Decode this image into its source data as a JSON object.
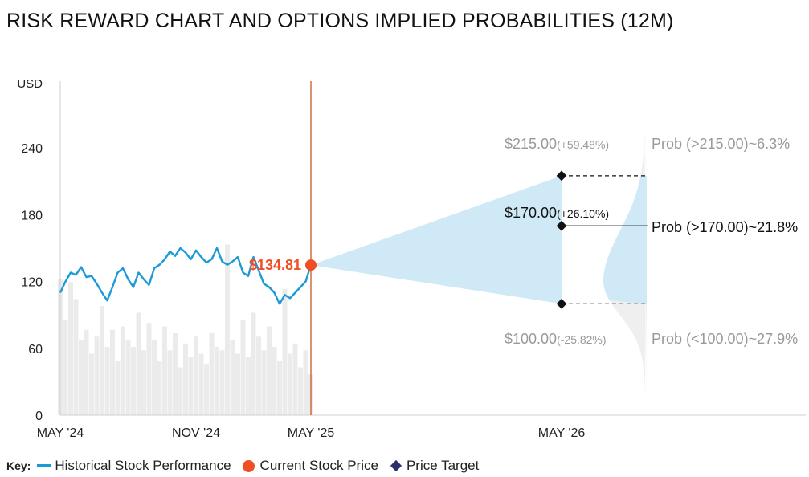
{
  "title": "RISK REWARD CHART AND OPTIONS IMPLIED PROBABILITIES (12M)",
  "colors": {
    "history_line": "#1a9ad6",
    "volume_bars": "#ebebeb",
    "current_marker": "#f04e23",
    "divider": "#c8461a",
    "cone": "#cfeaf6",
    "distribution": "#efefef",
    "target_marker": "#111111",
    "muted_text": "#999999"
  },
  "chart_data": {
    "type": "line",
    "ylabel": "USD",
    "ylim": [
      0,
      300
    ],
    "yticks": [
      "0",
      "60",
      "120",
      "180",
      "240"
    ],
    "xtick_labels": [
      "MAY '24",
      "NOV '24",
      "MAY '25",
      "MAY '26"
    ],
    "history_series": {
      "name": "Historical Stock Performance",
      "x_months": [
        0,
        0.25,
        0.5,
        0.75,
        1,
        1.25,
        1.5,
        1.75,
        2,
        2.25,
        2.5,
        2.75,
        3,
        3.25,
        3.5,
        3.75,
        4,
        4.25,
        4.5,
        4.75,
        5,
        5.25,
        5.5,
        5.75,
        6,
        6.25,
        6.5,
        6.75,
        7,
        7.25,
        7.5,
        7.75,
        8,
        8.25,
        8.5,
        8.75,
        9,
        9.25,
        9.5,
        9.75,
        10,
        10.25,
        10.5,
        10.75,
        11,
        11.25,
        11.5,
        11.75,
        12
      ],
      "values": [
        110,
        120,
        128,
        126,
        133,
        124,
        125,
        118,
        110,
        103,
        115,
        128,
        132,
        122,
        115,
        128,
        122,
        117,
        132,
        135,
        140,
        147,
        143,
        150,
        146,
        140,
        148,
        142,
        137,
        140,
        150,
        138,
        135,
        138,
        142,
        128,
        125,
        142,
        130,
        118,
        115,
        110,
        100,
        108,
        105,
        110,
        115,
        120,
        135
      ]
    },
    "volume_series": {
      "name": "volume",
      "x_months": [
        0,
        0.25,
        0.5,
        0.75,
        1,
        1.25,
        1.5,
        1.75,
        2,
        2.25,
        2.5,
        2.75,
        3,
        3.25,
        3.5,
        3.75,
        4,
        4.25,
        4.5,
        4.75,
        5,
        5.25,
        5.5,
        5.75,
        6,
        6.25,
        6.5,
        6.75,
        7,
        7.25,
        7.5,
        7.75,
        8,
        8.25,
        8.5,
        8.75,
        9,
        9.25,
        9.5,
        9.75,
        10,
        10.25,
        10.5,
        10.75,
        11,
        11.25,
        11.5,
        11.75,
        12
      ],
      "values": [
        200,
        140,
        195,
        170,
        110,
        125,
        90,
        115,
        160,
        100,
        125,
        80,
        130,
        110,
        100,
        150,
        95,
        135,
        110,
        80,
        130,
        95,
        120,
        70,
        105,
        85,
        115,
        90,
        75,
        120,
        100,
        95,
        250,
        110,
        90,
        140,
        85,
        150,
        115,
        95,
        130,
        100,
        80,
        185,
        90,
        105,
        70,
        95,
        60
      ]
    },
    "current_price": {
      "name": "Current Stock Price",
      "label": "$134.81",
      "month": 12,
      "value": 134.81
    },
    "price_targets": [
      {
        "label": "$215.00",
        "change": "(+59.48%)",
        "value": 215.0
      },
      {
        "label": "$170.00",
        "change": "(+26.10%)",
        "value": 170.0
      },
      {
        "label": "$100.00",
        "change": "(-25.82%)",
        "value": 100.0
      }
    ],
    "target_month": 24,
    "probabilities": [
      {
        "label": "Prob (>215.00)~6.3%",
        "value": 215.0
      },
      {
        "label": "Prob (>170.00)~21.8%",
        "value": 170.0
      },
      {
        "label": "Prob (<100.00)~27.9%",
        "value": 100.0
      }
    ],
    "distribution_range": [
      15,
      255
    ],
    "distribution_mode": 120
  },
  "legend": {
    "key_label": "Key:",
    "items": [
      {
        "label": "Historical Stock Performance",
        "symbol": "line"
      },
      {
        "label": "Current Stock Price",
        "symbol": "dot"
      },
      {
        "label": "Price Target",
        "symbol": "diamond"
      }
    ]
  }
}
